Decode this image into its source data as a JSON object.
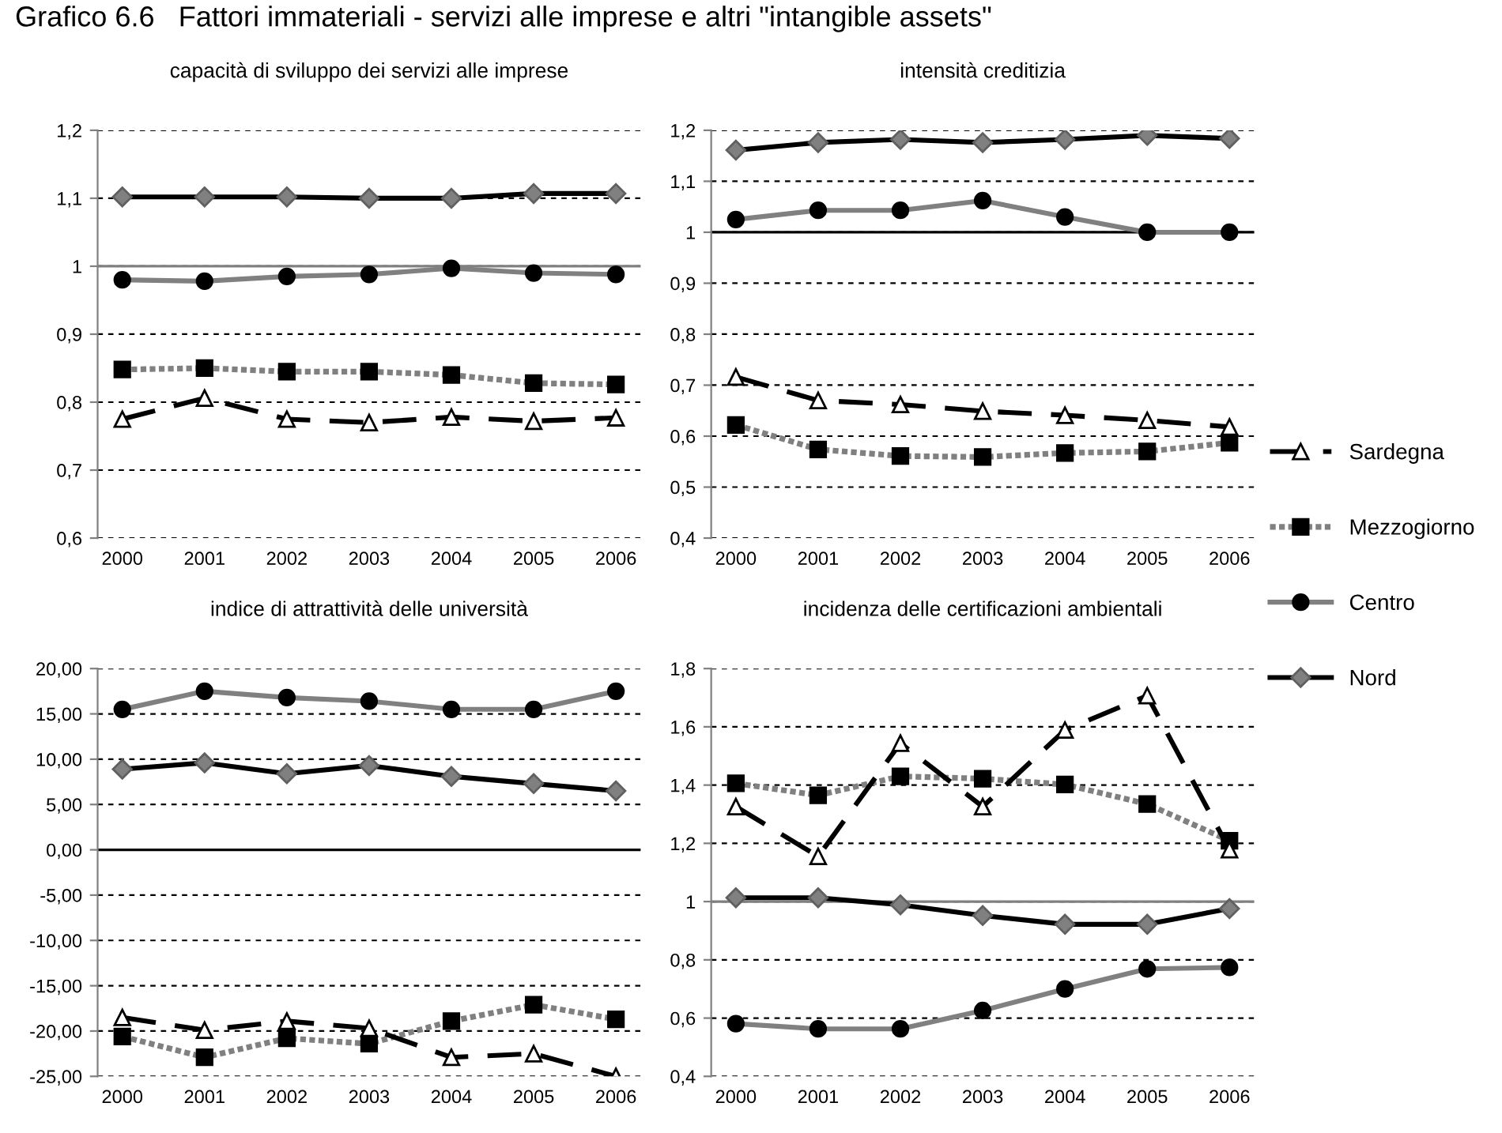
{
  "chart_data": [
    {
      "type": "line",
      "title": "capacità di sviluppo dei servizi alle imprese",
      "annotations": [
        "Grafico 6.6   Fattori immateriali - servizi alle imprese e altri \"intangible assets\""
      ],
      "categories": [
        "2000",
        "2001",
        "2002",
        "2003",
        "2004",
        "2005",
        "2006"
      ],
      "series": [
        {
          "name": "Nord",
          "color": "#000000",
          "marker": "diamond",
          "line_style": "solid",
          "values": [
            1.102,
            1.102,
            1.102,
            1.1,
            1.1,
            1.107,
            1.107
          ]
        },
        {
          "name": "Centro",
          "color": "#808080",
          "marker": "circle",
          "line_style": "solid",
          "values": [
            0.98,
            0.978,
            0.985,
            0.988,
            0.997,
            0.99,
            0.988
          ]
        },
        {
          "name": "Mezzogiorno",
          "color": "#808080",
          "marker": "square",
          "line_style": "dotted",
          "values": [
            0.848,
            0.85,
            0.845,
            0.845,
            0.84,
            0.828,
            0.826
          ]
        },
        {
          "name": "Sardegna",
          "color": "#000000",
          "marker": "triangle",
          "line_style": "dashed",
          "values": [
            0.775,
            0.806,
            0.775,
            0.77,
            0.778,
            0.772,
            0.777
          ]
        }
      ],
      "ylim": [
        0.6,
        1.2
      ],
      "yticks": [
        {
          "value": 0.6,
          "label": "0,6"
        },
        {
          "value": 0.7,
          "label": "0,7"
        },
        {
          "value": 0.8,
          "label": "0,8"
        },
        {
          "value": 0.9,
          "label": "0,9"
        },
        1,
        {
          "value": 1.1,
          "label": "1,1"
        },
        {
          "value": 1.2,
          "label": "1,2"
        }
      ],
      "ref_lines": [
        {
          "axis": "y",
          "value": 1,
          "color": "#808080"
        }
      ],
      "grid": "y",
      "legend": "right"
    },
    {
      "type": "line",
      "title": "intensità creditizia",
      "categories": [
        "2000",
        "2001",
        "2002",
        "2003",
        "2004",
        "2005",
        "2006"
      ],
      "series": [
        {
          "color": "#000000",
          "marker": "diamond",
          "line_style": "solid",
          "values": [
            1.161,
            1.176,
            1.182,
            1.176,
            1.182,
            1.19,
            1.184
          ]
        },
        {
          "color": "#808080",
          "marker": "circle",
          "line_style": "solid",
          "values": [
            1.025,
            1.043,
            1.043,
            1.062,
            1.03,
            1.0,
            1.0
          ]
        },
        {
          "color": "#808080",
          "marker": "square",
          "line_style": "dotted",
          "values": [
            0.622,
            0.574,
            0.561,
            0.559,
            0.567,
            0.57,
            0.587
          ]
        },
        {
          "color": "#000000",
          "marker": "triangle",
          "line_style": "dashed",
          "values": [
            0.716,
            0.67,
            0.662,
            0.649,
            0.641,
            0.631,
            0.618
          ]
        }
      ],
      "ylim": [
        0.4,
        1.2
      ],
      "yticks": [
        {
          "value": 0.4,
          "label": "0,4"
        },
        {
          "value": 0.5,
          "label": "0,5"
        },
        {
          "value": 0.6,
          "label": "0,6"
        },
        {
          "value": 0.7,
          "label": "0,7"
        },
        {
          "value": 0.8,
          "label": "0,8"
        },
        {
          "value": 0.9,
          "label": "0,9"
        },
        1,
        {
          "value": 1.1,
          "label": "1,1"
        },
        {
          "value": 1.2,
          "label": "1,2"
        }
      ],
      "ref_lines": [
        {
          "axis": "y",
          "value": 1,
          "color": "#000000"
        }
      ],
      "grid": "y"
    },
    {
      "type": "line",
      "title": "indice di attrattività delle università",
      "categories": [
        "2000",
        "2001",
        "2002",
        "2003",
        "2004",
        "2005",
        "2006"
      ],
      "series": [
        {
          "color": "#000000",
          "marker": "diamond",
          "line_style": "solid",
          "values": [
            8.9,
            9.6,
            8.4,
            9.3,
            8.1,
            7.3,
            6.5
          ]
        },
        {
          "color": "#808080",
          "marker": "circle",
          "line_style": "solid",
          "values": [
            15.5,
            17.5,
            16.8,
            16.4,
            15.5,
            15.5,
            17.5
          ]
        },
        {
          "color": "#808080",
          "marker": "square",
          "line_style": "dotted",
          "values": [
            -20.6,
            -22.9,
            -20.8,
            -21.4,
            -18.9,
            -17.1,
            -18.7
          ]
        },
        {
          "color": "#000000",
          "marker": "triangle",
          "line_style": "dashed",
          "values": [
            -18.5,
            -19.9,
            -18.9,
            -19.7,
            -22.9,
            -22.5,
            -25.0
          ]
        }
      ],
      "ylim": [
        -25,
        20
      ],
      "yticks": [
        {
          "value": -25,
          "label": "-25,00"
        },
        {
          "value": -20,
          "label": "-20,00"
        },
        {
          "value": -15,
          "label": "-15,00"
        },
        {
          "value": -10,
          "label": "-10,00"
        },
        {
          "value": -5,
          "label": "-5,00"
        },
        {
          "value": 0,
          "label": "0,00"
        },
        {
          "value": 5,
          "label": "5,00"
        },
        {
          "value": 10,
          "label": "10,00"
        },
        {
          "value": 15,
          "label": "15,00"
        },
        {
          "value": 20,
          "label": "20,00"
        }
      ],
      "ref_lines": [
        {
          "axis": "y",
          "value": 0,
          "color": "#000000"
        }
      ],
      "grid": "y"
    },
    {
      "type": "line",
      "title": "incidenza delle certificazioni ambientali",
      "categories": [
        "2000",
        "2001",
        "2002",
        "2003",
        "2004",
        "2005",
        "2006"
      ],
      "series": [
        {
          "color": "#000000",
          "marker": "diamond",
          "line_style": "solid",
          "values": [
            1.013,
            1.013,
            0.989,
            0.952,
            0.922,
            0.922,
            0.976
          ]
        },
        {
          "color": "#808080",
          "marker": "circle",
          "line_style": "solid",
          "values": [
            0.581,
            0.563,
            0.563,
            0.626,
            0.7,
            0.769,
            0.774
          ]
        },
        {
          "color": "#808080",
          "marker": "square",
          "line_style": "dotted",
          "values": [
            1.406,
            1.365,
            1.43,
            1.422,
            1.402,
            1.335,
            1.209
          ]
        },
        {
          "color": "#000000",
          "marker": "triangle",
          "line_style": "dashed",
          "values": [
            1.326,
            1.155,
            1.544,
            1.326,
            1.589,
            1.707,
            1.178
          ]
        }
      ],
      "ylim": [
        0.4,
        1.8
      ],
      "yticks": [
        {
          "value": 0.4,
          "label": "0,4"
        },
        {
          "value": 0.6,
          "label": "0,6"
        },
        {
          "value": 0.8,
          "label": "0,8"
        },
        1,
        {
          "value": 1.2,
          "label": "1,2"
        },
        {
          "value": 1.4,
          "label": "1,4"
        },
        {
          "value": 1.6,
          "label": "1,6"
        },
        {
          "value": 1.8,
          "label": "1,8"
        }
      ],
      "ref_lines": [
        {
          "axis": "y",
          "value": 1,
          "color": "#808080"
        }
      ],
      "grid": "y"
    }
  ]
}
